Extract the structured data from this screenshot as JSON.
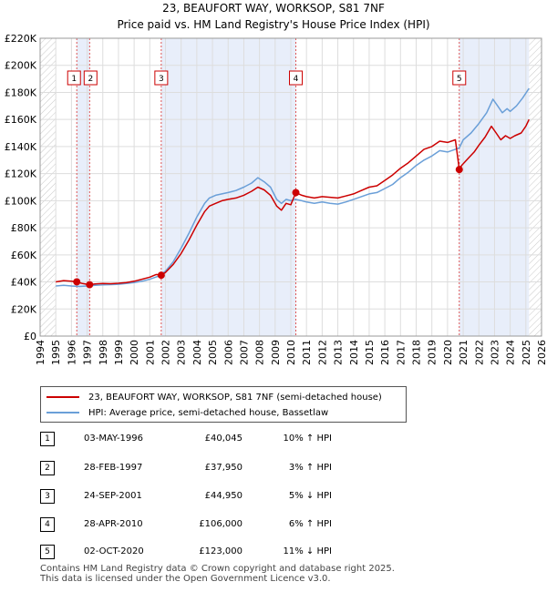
{
  "title_line1": "23, BEAUFORT WAY, WORKSOP, S81 7NF",
  "title_line2": "Price paid vs. HM Land Registry's House Price Index (HPI)",
  "chart_data": {
    "type": "line",
    "x_range": [
      1994,
      2026
    ],
    "y_range": [
      0,
      220000
    ],
    "y_ticks": [
      0,
      20000,
      40000,
      60000,
      80000,
      100000,
      120000,
      140000,
      160000,
      180000,
      200000,
      220000
    ],
    "y_tick_labels": [
      "£0",
      "£20K",
      "£40K",
      "£60K",
      "£80K",
      "£100K",
      "£120K",
      "£140K",
      "£160K",
      "£180K",
      "£200K",
      "£220K"
    ],
    "x_ticks": [
      1994,
      1995,
      1996,
      1997,
      1998,
      1999,
      2000,
      2001,
      2002,
      2003,
      2004,
      2005,
      2006,
      2007,
      2008,
      2009,
      2010,
      2011,
      2012,
      2013,
      2014,
      2015,
      2016,
      2017,
      2018,
      2019,
      2020,
      2021,
      2022,
      2023,
      2024,
      2025,
      2026
    ],
    "data_start": 1995.0,
    "data_end": 2025.2,
    "hatched_before": 1995.0,
    "hatched_after": 2025.2,
    "shaded_spans": [
      [
        1996.34,
        1997.16
      ],
      [
        2001.73,
        2010.32
      ],
      [
        2020.75,
        2025.2
      ]
    ],
    "series": [
      {
        "name": "23, BEAUFORT WAY, WORKSOP, S81 7NF (semi-detached house)",
        "color": "#cc0000",
        "points": [
          [
            1995.0,
            40000
          ],
          [
            1995.5,
            41000
          ],
          [
            1996.0,
            40500
          ],
          [
            1996.34,
            40045
          ],
          [
            1996.7,
            38800
          ],
          [
            1997.16,
            37950
          ],
          [
            1997.5,
            38500
          ],
          [
            1998.0,
            38800
          ],
          [
            1998.5,
            38700
          ],
          [
            1999.0,
            39000
          ],
          [
            1999.5,
            39500
          ],
          [
            2000.0,
            40500
          ],
          [
            2000.5,
            42000
          ],
          [
            2001.0,
            43500
          ],
          [
            2001.4,
            45500
          ],
          [
            2001.73,
            44950
          ],
          [
            2002.0,
            47000
          ],
          [
            2002.5,
            53000
          ],
          [
            2003.0,
            61000
          ],
          [
            2003.5,
            71000
          ],
          [
            2004.0,
            82000
          ],
          [
            2004.5,
            92000
          ],
          [
            2004.8,
            96000
          ],
          [
            2005.2,
            98000
          ],
          [
            2005.6,
            100000
          ],
          [
            2006.0,
            101000
          ],
          [
            2006.5,
            102000
          ],
          [
            2007.0,
            104000
          ],
          [
            2007.5,
            107000
          ],
          [
            2007.9,
            110000
          ],
          [
            2008.3,
            108000
          ],
          [
            2008.7,
            104000
          ],
          [
            2009.1,
            96000
          ],
          [
            2009.4,
            93000
          ],
          [
            2009.7,
            98000
          ],
          [
            2010.0,
            97000
          ],
          [
            2010.32,
            106000
          ],
          [
            2010.7,
            104000
          ],
          [
            2011.0,
            103000
          ],
          [
            2011.5,
            102000
          ],
          [
            2012.0,
            103000
          ],
          [
            2012.5,
            102500
          ],
          [
            2013.0,
            102000
          ],
          [
            2013.5,
            103500
          ],
          [
            2014.0,
            105000
          ],
          [
            2014.5,
            107500
          ],
          [
            2015.0,
            110000
          ],
          [
            2015.5,
            111000
          ],
          [
            2016.0,
            115000
          ],
          [
            2016.5,
            119000
          ],
          [
            2017.0,
            124000
          ],
          [
            2017.5,
            128000
          ],
          [
            2018.0,
            133000
          ],
          [
            2018.5,
            138000
          ],
          [
            2019.0,
            140000
          ],
          [
            2019.5,
            144000
          ],
          [
            2020.0,
            143000
          ],
          [
            2020.5,
            145000
          ],
          [
            2020.75,
            123000
          ],
          [
            2020.9,
            126000
          ],
          [
            2021.3,
            131000
          ],
          [
            2021.7,
            136000
          ],
          [
            2022.0,
            141000
          ],
          [
            2022.4,
            147000
          ],
          [
            2022.8,
            155000
          ],
          [
            2023.1,
            150000
          ],
          [
            2023.4,
            145000
          ],
          [
            2023.7,
            148000
          ],
          [
            2024.0,
            146000
          ],
          [
            2024.3,
            148000
          ],
          [
            2024.7,
            150000
          ],
          [
            2025.0,
            155000
          ],
          [
            2025.2,
            160000
          ]
        ]
      },
      {
        "name": "HPI: Average price, semi-detached house, Bassetlaw",
        "color": "#6a9fd8",
        "points": [
          [
            1995.0,
            37000
          ],
          [
            1995.5,
            37500
          ],
          [
            1996.0,
            37000
          ],
          [
            1996.5,
            36700
          ],
          [
            1997.0,
            37000
          ],
          [
            1997.5,
            37500
          ],
          [
            1998.0,
            37800
          ],
          [
            1998.5,
            38000
          ],
          [
            1999.0,
            38300
          ],
          [
            1999.5,
            38800
          ],
          [
            2000.0,
            39500
          ],
          [
            2000.5,
            40500
          ],
          [
            2001.0,
            42000
          ],
          [
            2001.5,
            44000
          ],
          [
            2002.0,
            48000
          ],
          [
            2002.5,
            55000
          ],
          [
            2003.0,
            65000
          ],
          [
            2003.5,
            76000
          ],
          [
            2004.0,
            88000
          ],
          [
            2004.5,
            98000
          ],
          [
            2004.8,
            102000
          ],
          [
            2005.2,
            104000
          ],
          [
            2005.6,
            105000
          ],
          [
            2006.0,
            106000
          ],
          [
            2006.5,
            107500
          ],
          [
            2007.0,
            110000
          ],
          [
            2007.5,
            113000
          ],
          [
            2007.9,
            117000
          ],
          [
            2008.3,
            114000
          ],
          [
            2008.7,
            110000
          ],
          [
            2009.1,
            101000
          ],
          [
            2009.4,
            98000
          ],
          [
            2009.7,
            101000
          ],
          [
            2010.0,
            100000
          ],
          [
            2010.3,
            101000
          ],
          [
            2010.7,
            100000
          ],
          [
            2011.0,
            99000
          ],
          [
            2011.5,
            98000
          ],
          [
            2012.0,
            99000
          ],
          [
            2012.5,
            98000
          ],
          [
            2013.0,
            97500
          ],
          [
            2013.5,
            99000
          ],
          [
            2014.0,
            101000
          ],
          [
            2014.5,
            103000
          ],
          [
            2015.0,
            105000
          ],
          [
            2015.5,
            106000
          ],
          [
            2016.0,
            109000
          ],
          [
            2016.5,
            112000
          ],
          [
            2017.0,
            117000
          ],
          [
            2017.5,
            121000
          ],
          [
            2018.0,
            126000
          ],
          [
            2018.5,
            130000
          ],
          [
            2019.0,
            133000
          ],
          [
            2019.5,
            137000
          ],
          [
            2020.0,
            136000
          ],
          [
            2020.5,
            138000
          ],
          [
            2020.75,
            139000
          ],
          [
            2021.0,
            145000
          ],
          [
            2021.5,
            150000
          ],
          [
            2022.0,
            157000
          ],
          [
            2022.5,
            165000
          ],
          [
            2022.9,
            175000
          ],
          [
            2023.2,
            170000
          ],
          [
            2023.5,
            165000
          ],
          [
            2023.8,
            168000
          ],
          [
            2024.0,
            166000
          ],
          [
            2024.4,
            170000
          ],
          [
            2024.8,
            176000
          ],
          [
            2025.2,
            183000
          ]
        ]
      }
    ],
    "sales": [
      {
        "label": "1",
        "x": 1996.34,
        "price": 40045
      },
      {
        "label": "2",
        "x": 1997.16,
        "price": 37950
      },
      {
        "label": "3",
        "x": 2001.73,
        "price": 44950
      },
      {
        "label": "4",
        "x": 2010.32,
        "price": 106000
      },
      {
        "label": "5",
        "x": 2020.75,
        "price": 123000
      }
    ]
  },
  "legend": {
    "property_label": "23, BEAUFORT WAY, WORKSOP, S81 7NF (semi-detached house)",
    "hpi_label": "HPI: Average price, semi-detached house, Bassetlaw"
  },
  "transactions": [
    {
      "num": "1",
      "date": "03-MAY-1996",
      "price": "£40,045",
      "hpi": "10% ↑ HPI"
    },
    {
      "num": "2",
      "date": "28-FEB-1997",
      "price": "£37,950",
      "hpi": "3% ↑ HPI"
    },
    {
      "num": "3",
      "date": "24-SEP-2001",
      "price": "£44,950",
      "hpi": "5% ↓ HPI"
    },
    {
      "num": "4",
      "date": "28-APR-2010",
      "price": "£106,000",
      "hpi": "6% ↑ HPI"
    },
    {
      "num": "5",
      "date": "02-OCT-2020",
      "price": "£123,000",
      "hpi": "11% ↓ HPI"
    }
  ],
  "footer": {
    "line1": "Contains HM Land Registry data © Crown copyright and database right 2025.",
    "line2": "This data is licensed under the Open Government Licence v3.0."
  }
}
